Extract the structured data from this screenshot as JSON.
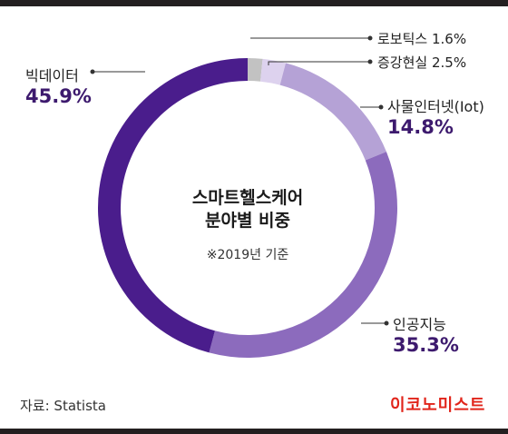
{
  "chart_data": {
    "type": "pie",
    "title": "스마트헬스케어",
    "subtitle": "분야별 비중",
    "note": "※2019년 기준",
    "slices": [
      {
        "name": "로보틱스",
        "value": 1.6,
        "label": "1.6%",
        "color": "#c2c2c2"
      },
      {
        "name": "증강현실",
        "value": 2.5,
        "label": "2.5%",
        "color": "#ddd2ee"
      },
      {
        "name": "사물인터넷(Iot)",
        "value": 14.8,
        "label": "14.8%",
        "color": "#b5a2d6"
      },
      {
        "name": "인공지능",
        "value": 35.3,
        "label": "35.3%",
        "color": "#8c6bbd"
      },
      {
        "name": "빅데이터",
        "value": 45.9,
        "label": "45.9%",
        "color": "#4a1d8c"
      }
    ]
  },
  "source": "자료: Statista",
  "brand": "이코노미스트"
}
